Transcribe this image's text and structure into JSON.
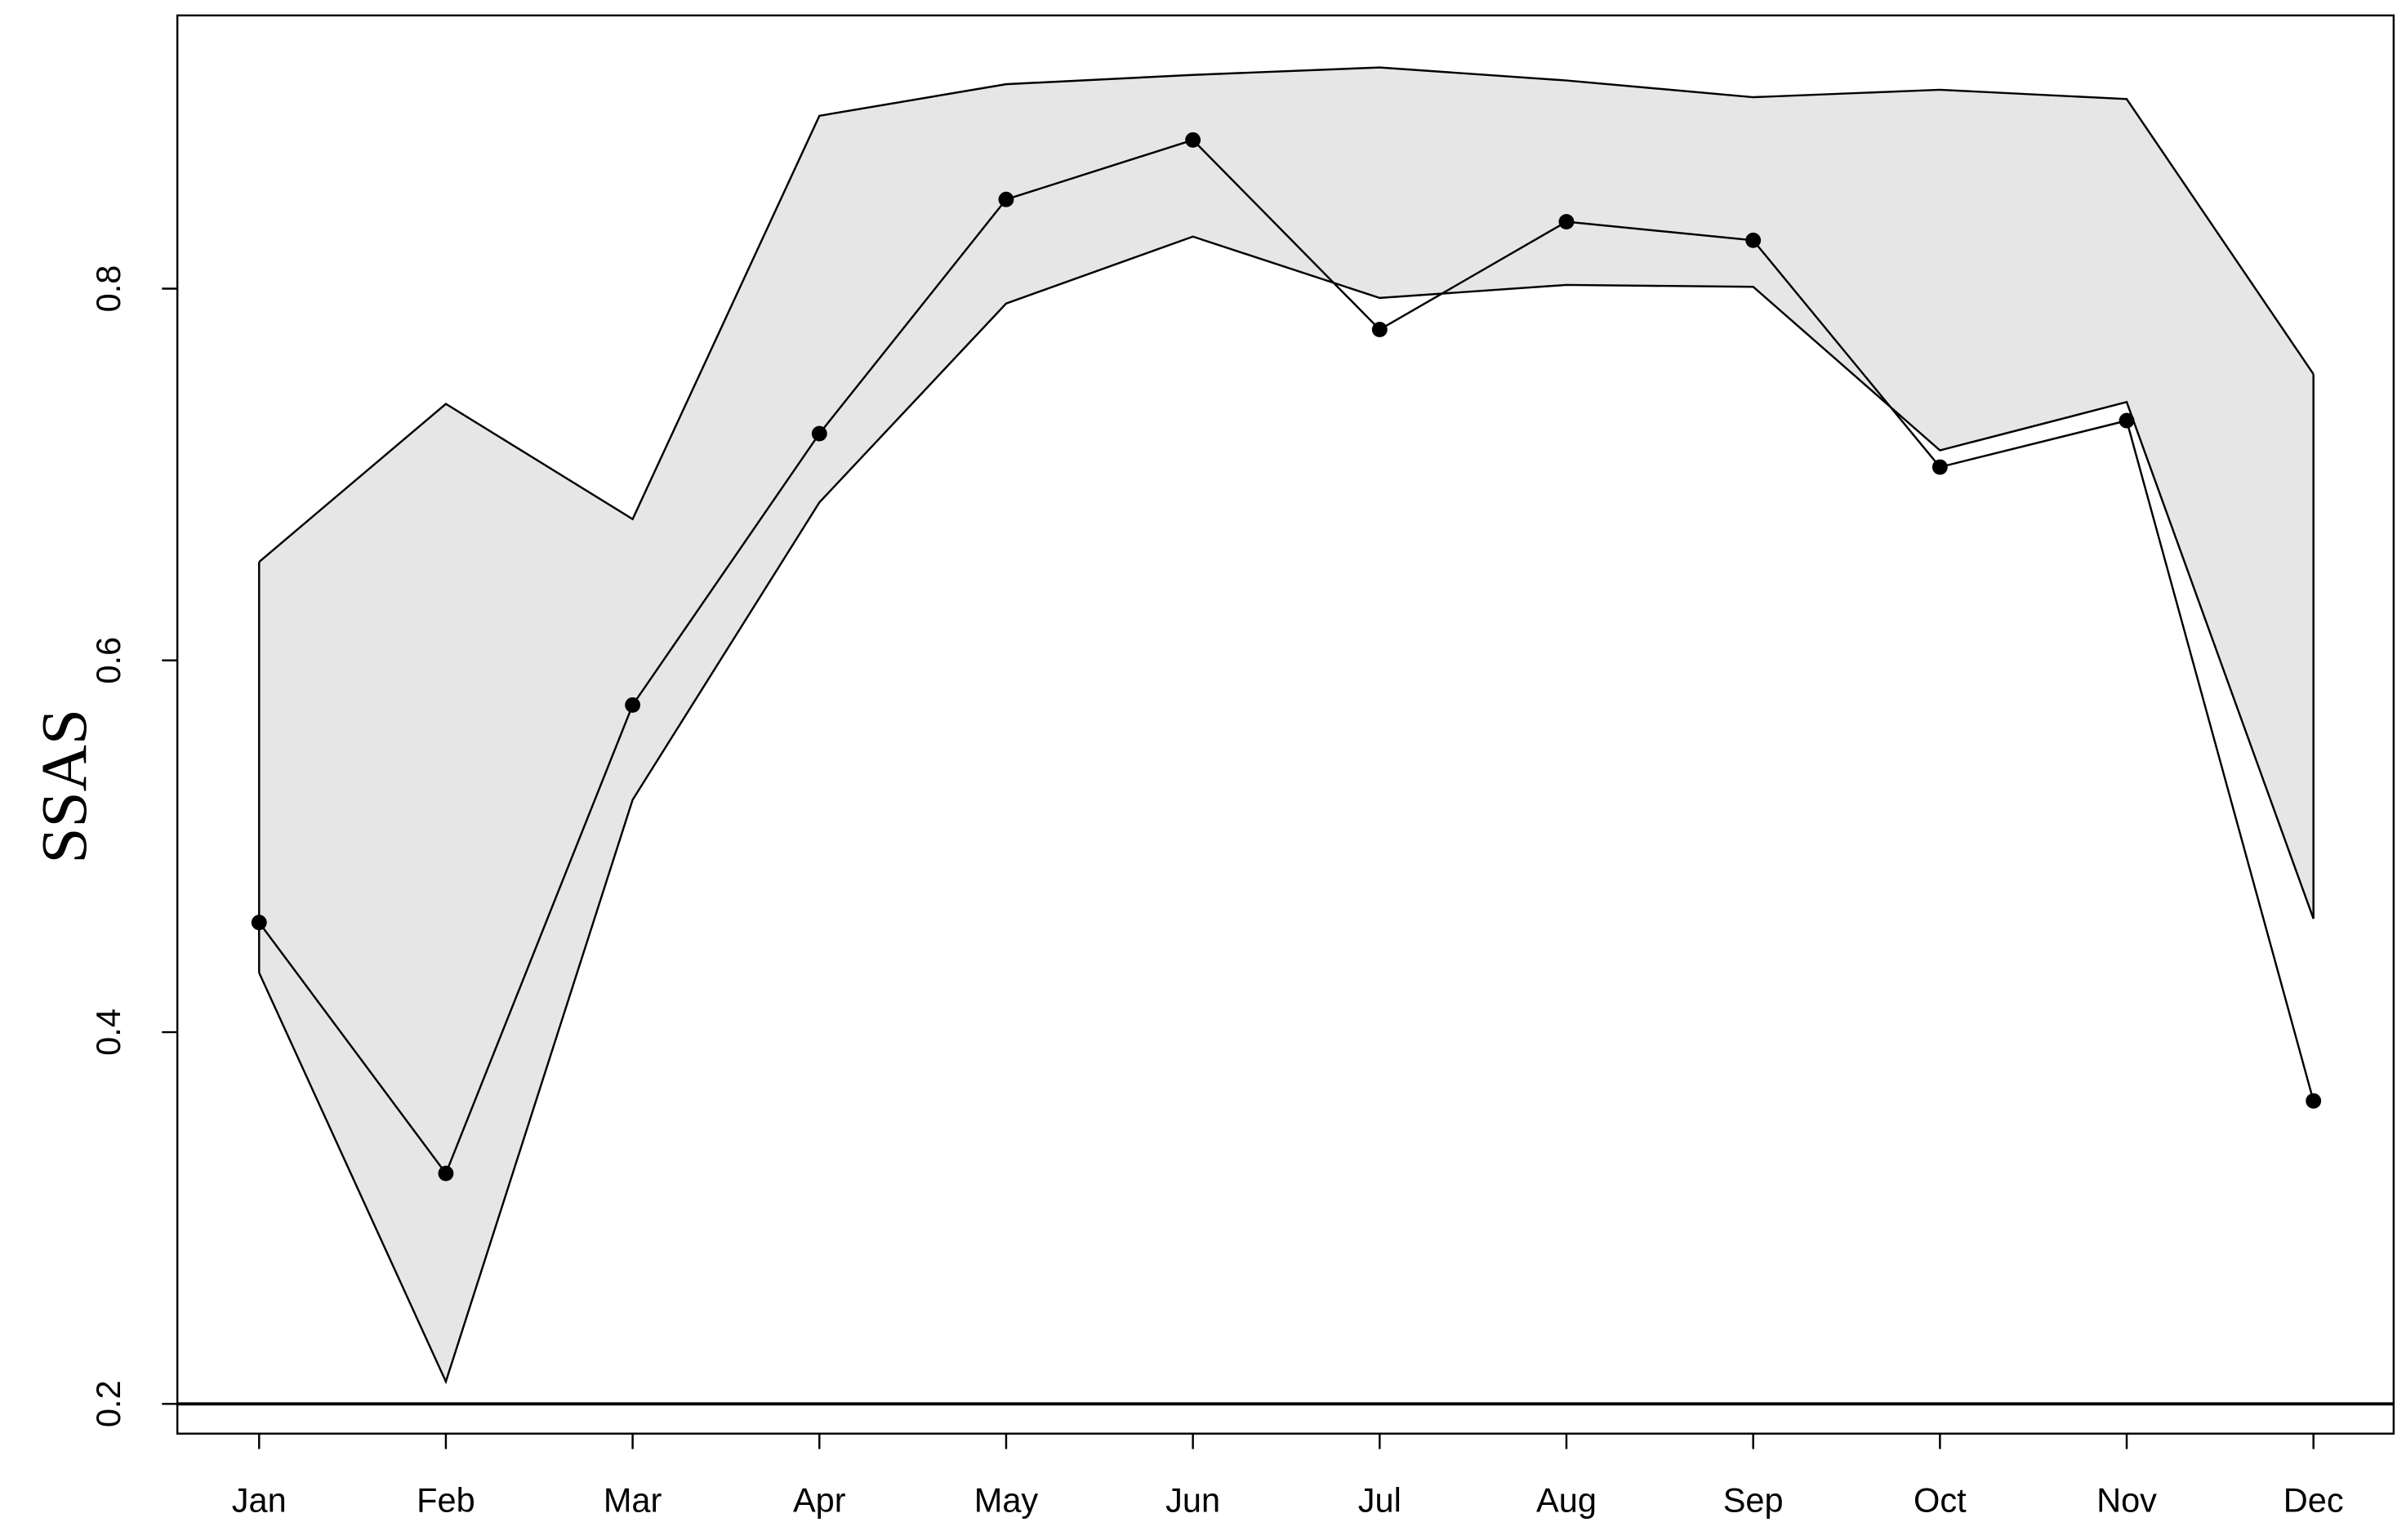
{
  "chart_data": {
    "type": "line",
    "y_label": "SSAS",
    "categories": [
      "Jan",
      "Feb",
      "Mar",
      "Apr",
      "May",
      "Jun",
      "Jul",
      "Aug",
      "Sep",
      "Oct",
      "Nov",
      "Dec"
    ],
    "values": [
      0.459,
      0.324,
      0.576,
      0.722,
      0.848,
      0.88,
      0.778,
      0.836,
      0.826,
      0.704,
      0.729,
      0.363
    ],
    "color": "#000000",
    "band_upper": [
      0.653,
      0.738,
      0.676,
      0.893,
      0.91,
      0.915,
      0.919,
      0.912,
      0.903,
      0.907,
      0.902,
      0.754
    ],
    "band_lower": [
      0.432,
      0.212,
      0.525,
      0.685,
      0.792,
      0.828,
      0.795,
      0.802,
      0.801,
      0.713,
      0.739,
      0.461
    ],
    "band_color": "#e6e6e6",
    "reference_line": 0.2,
    "ylim": [
      0.184,
      0.947
    ],
    "yticks": [
      0.2,
      0.4,
      0.6,
      0.8
    ]
  }
}
